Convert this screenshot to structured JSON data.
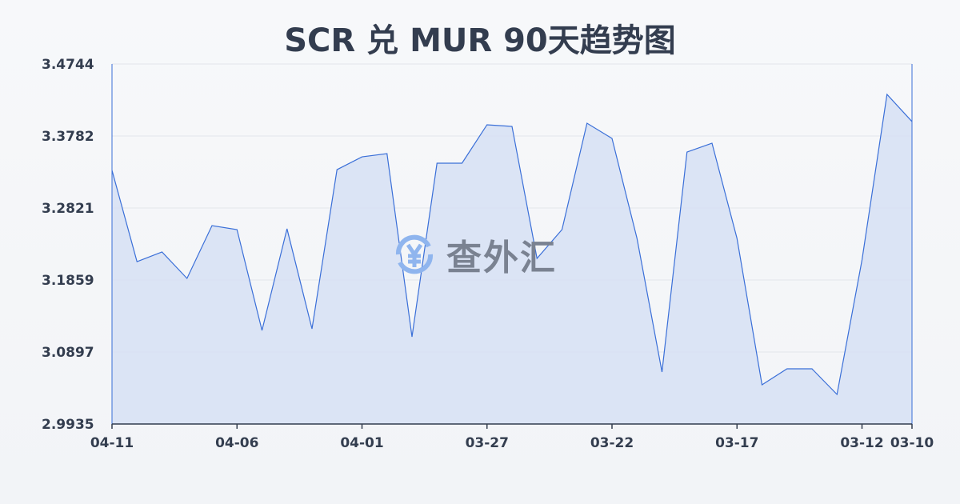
{
  "chart_data": {
    "type": "area",
    "title": "SCR 兑 MUR 90天趋势图",
    "xlabel": "",
    "ylabel": "",
    "x": [
      "04-11",
      "04-10",
      "04-09",
      "04-08",
      "04-07",
      "04-06",
      "04-05",
      "04-04",
      "04-03",
      "04-02",
      "04-01",
      "03-31",
      "03-30",
      "03-29",
      "03-28",
      "03-27",
      "03-26",
      "03-25",
      "03-24",
      "03-23",
      "03-22",
      "03-21",
      "03-20",
      "03-19",
      "03-18",
      "03-17",
      "03-16",
      "03-15",
      "03-14",
      "03-13",
      "03-12",
      "03-11",
      "03-10"
    ],
    "values": [
      3.3323,
      3.2104,
      3.2233,
      3.188,
      3.2585,
      3.2532,
      3.1185,
      3.2543,
      3.1207,
      3.3333,
      3.3504,
      3.3547,
      3.11,
      3.3419,
      3.3419,
      3.3932,
      3.391,
      3.2147,
      3.2532,
      3.3953,
      3.375,
      3.2414,
      3.063,
      3.3568,
      3.3686,
      3.2414,
      3.0459,
      3.0672,
      3.0672,
      3.033,
      3.2126,
      3.4338,
      3.3975
    ],
    "x_tick_labels": [
      "04-11",
      "04-06",
      "04-01",
      "03-27",
      "03-22",
      "03-17",
      "03-12",
      "03-10"
    ],
    "y_tick_labels": [
      "3.4744",
      "3.3782",
      "3.2821",
      "3.1859",
      "3.0897",
      "2.9935"
    ],
    "ylim": [
      2.9935,
      3.4744
    ],
    "grid": true,
    "line_color": "#3a6fd8",
    "fill_color": "#d6e1f5"
  },
  "watermark": {
    "text": "查外汇",
    "icon": "yen-exchange-icon"
  }
}
